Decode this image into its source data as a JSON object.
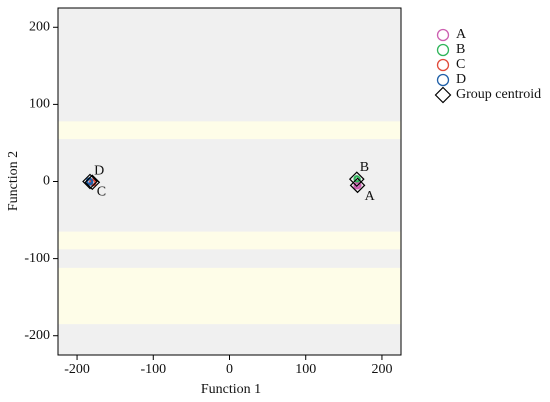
{
  "chart_data": {
    "type": "scatter",
    "xlabel": "Function 1",
    "ylabel": "Function 2",
    "xlim": [
      -225,
      225
    ],
    "ylim": [
      -225,
      225
    ],
    "xticks": [
      -200,
      -100,
      0,
      100,
      200
    ],
    "yticks": [
      200,
      100,
      0,
      -100,
      -200
    ],
    "tick_labels_x": [
      "-200",
      "-100",
      "0",
      "100",
      "200"
    ],
    "tick_labels_y": [
      "200",
      "100",
      "0",
      "-100",
      "-200"
    ],
    "background_color": "#f0f0f0",
    "band_color": "#fefde8",
    "bands_y": [
      [
        55,
        78
      ],
      [
        -88,
        -65
      ],
      [
        -185,
        -112
      ]
    ],
    "legend_position": "outside-right",
    "series": [
      {
        "name": "A",
        "color": "#cc5fb0",
        "points": [
          [
            167,
            -6
          ],
          [
            168,
            -4
          ],
          [
            168,
            -6
          ],
          [
            167,
            -5
          ],
          [
            169,
            -5
          ]
        ]
      },
      {
        "name": "B",
        "color": "#2fb55a",
        "points": [
          [
            167,
            3
          ],
          [
            167,
            4
          ],
          [
            168,
            3
          ]
        ]
      },
      {
        "name": "C",
        "color": "#e04a3a",
        "points": [
          [
            -180,
            -1
          ],
          [
            -179,
            0
          ],
          [
            -179,
            -2
          ]
        ]
      },
      {
        "name": "D",
        "color": "#1f5fa8",
        "points": [
          [
            -183,
            0
          ],
          [
            -184,
            1
          ],
          [
            -183,
            -1
          ]
        ]
      }
    ],
    "centroids": [
      {
        "group": "A",
        "x": 168,
        "y": -5
      },
      {
        "group": "B",
        "x": 167,
        "y": 3
      },
      {
        "group": "C",
        "x": -180,
        "y": -1
      },
      {
        "group": "D",
        "x": -183,
        "y": 0
      }
    ],
    "annotations": [
      {
        "text": "B",
        "x": 177,
        "y": 18
      },
      {
        "text": "A",
        "x": 184,
        "y": -20
      },
      {
        "text": "D",
        "x": -171,
        "y": 13
      },
      {
        "text": "C",
        "x": -168,
        "y": -14
      }
    ],
    "legend": [
      {
        "label": "A",
        "symbol": "circle",
        "color": "#cc5fb0"
      },
      {
        "label": "B",
        "symbol": "circle",
        "color": "#2fb55a"
      },
      {
        "label": "C",
        "symbol": "circle",
        "color": "#e04a3a"
      },
      {
        "label": "D",
        "symbol": "circle",
        "color": "#1f5fa8"
      },
      {
        "label": "Group centroid",
        "symbol": "diamond",
        "color": "#000000"
      }
    ]
  }
}
